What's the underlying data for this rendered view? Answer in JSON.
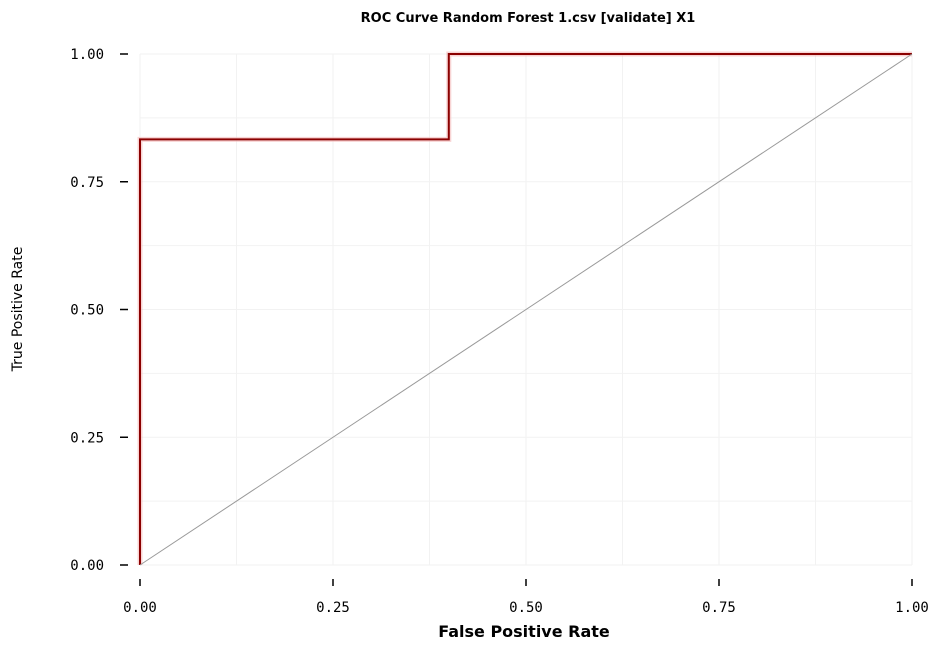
{
  "chart_data": {
    "type": "line",
    "title": "ROC Curve Random Forest 1.csv [validate] X1",
    "xlabel": "False Positive Rate",
    "ylabel": "True Positive Rate",
    "xlim": [
      0,
      1
    ],
    "ylim": [
      0,
      1
    ],
    "x_ticks": [
      0,
      0.25,
      0.5,
      0.75,
      1
    ],
    "x_tick_labels": [
      "0.00",
      "0.25",
      "0.50",
      "0.75",
      "1.00"
    ],
    "y_ticks": [
      0,
      0.25,
      0.5,
      0.75,
      1
    ],
    "y_tick_labels": [
      "0.00",
      "0.25",
      "0.50",
      "0.75",
      "1.00"
    ],
    "grid": true,
    "legend": "none",
    "series": [
      {
        "x": [
          0,
          0,
          0.4,
          0.4,
          1
        ],
        "y": [
          0,
          0.833,
          0.833,
          1,
          1
        ],
        "color": "#8b0000",
        "style": "step"
      },
      {
        "x": [
          0,
          1
        ],
        "y": [
          0,
          1
        ],
        "color": "#999999",
        "style": "diagonal"
      }
    ]
  }
}
